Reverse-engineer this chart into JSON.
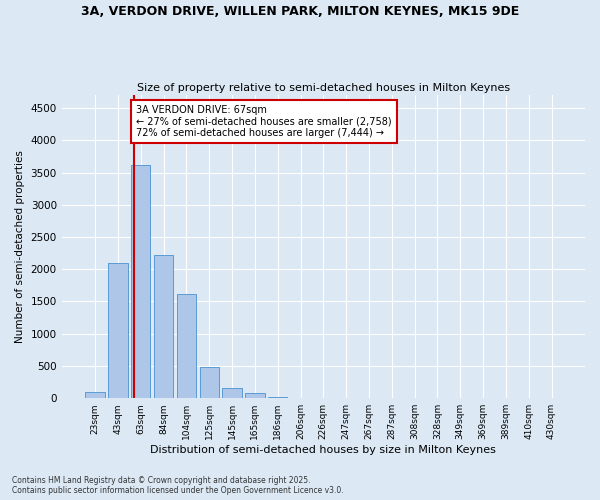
{
  "title_line1": "3A, VERDON DRIVE, WILLEN PARK, MILTON KEYNES, MK15 9DE",
  "title_line2": "Size of property relative to semi-detached houses in Milton Keynes",
  "xlabel": "Distribution of semi-detached houses by size in Milton Keynes",
  "ylabel": "Number of semi-detached properties",
  "categories": [
    "23sqm",
    "43sqm",
    "63sqm",
    "84sqm",
    "104sqm",
    "125sqm",
    "145sqm",
    "165sqm",
    "186sqm",
    "206sqm",
    "226sqm",
    "247sqm",
    "267sqm",
    "287sqm",
    "308sqm",
    "328sqm",
    "349sqm",
    "369sqm",
    "389sqm",
    "410sqm",
    "430sqm"
  ],
  "values": [
    100,
    2100,
    3620,
    2220,
    1620,
    490,
    155,
    80,
    15,
    5,
    2,
    1,
    0,
    0,
    0,
    0,
    0,
    0,
    0,
    0,
    0
  ],
  "bar_color": "#aec6e8",
  "bar_edge_color": "#5b9bd5",
  "annotation_title": "3A VERDON DRIVE: 67sqm",
  "annotation_line1": "← 27% of semi-detached houses are smaller (2,758)",
  "annotation_line2": "72% of semi-detached houses are larger (7,444) →",
  "annotation_box_color": "#ffffff",
  "annotation_box_edge_color": "#cc0000",
  "red_line_color": "#cc0000",
  "ylim": [
    0,
    4700
  ],
  "yticks": [
    0,
    500,
    1000,
    1500,
    2000,
    2500,
    3000,
    3500,
    4000,
    4500
  ],
  "background_color": "#dce9f5",
  "grid_color": "#ffffff",
  "footer_line1": "Contains HM Land Registry data © Crown copyright and database right 2025.",
  "footer_line2": "Contains public sector information licensed under the Open Government Licence v3.0."
}
